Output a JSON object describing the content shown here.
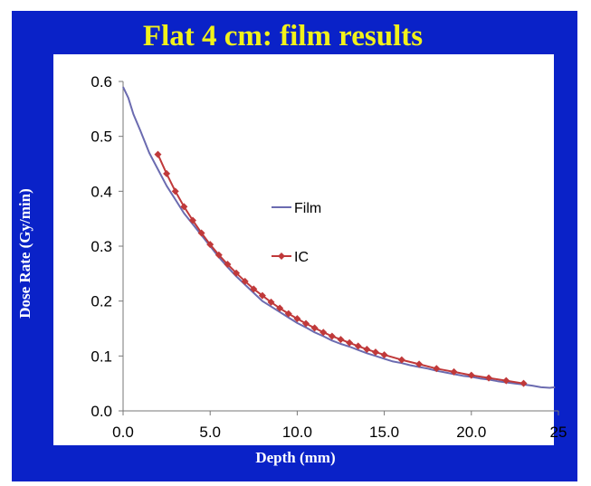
{
  "chart_data": {
    "type": "line",
    "title": "Flat 4 cm:  film results",
    "xlabel": "Depth (mm)",
    "ylabel": "Dose Rate (Gy/min)",
    "xlim": [
      0,
      25
    ],
    "ylim": [
      0,
      0.6
    ],
    "x_ticks": [
      "0.0",
      "5.0",
      "10.0",
      "15.0",
      "20.0",
      "25"
    ],
    "y_ticks": [
      "0.0",
      "0.1",
      "0.2",
      "0.3",
      "0.4",
      "0.5",
      "0.6"
    ],
    "grid": false,
    "legend_position": "center",
    "series": [
      {
        "name": "Film",
        "color": "#6b6bb0",
        "marker": "none",
        "x": [
          0,
          0.3,
          0.6,
          1.0,
          1.5,
          2.0,
          2.5,
          3.0,
          3.5,
          4.0,
          4.5,
          5.0,
          5.5,
          6.0,
          6.5,
          7.0,
          7.5,
          8.0,
          8.5,
          9.0,
          9.5,
          10.0,
          10.5,
          11.0,
          11.5,
          12.0,
          12.5,
          13.0,
          13.5,
          14.0,
          14.5,
          15.0,
          15.5,
          16.0,
          16.5,
          17.0,
          17.5,
          18.0,
          18.5,
          19.0,
          19.5,
          20.0,
          20.5,
          21.0,
          21.5,
          22.0,
          22.5,
          23.0,
          23.5,
          24.0,
          24.5,
          24.8
        ],
        "values": [
          0.59,
          0.57,
          0.54,
          0.51,
          0.47,
          0.44,
          0.41,
          0.385,
          0.36,
          0.34,
          0.32,
          0.3,
          0.28,
          0.262,
          0.245,
          0.23,
          0.215,
          0.2,
          0.19,
          0.18,
          0.17,
          0.16,
          0.152,
          0.143,
          0.136,
          0.128,
          0.122,
          0.117,
          0.111,
          0.105,
          0.1,
          0.095,
          0.09,
          0.087,
          0.083,
          0.08,
          0.077,
          0.073,
          0.07,
          0.067,
          0.064,
          0.062,
          0.059,
          0.057,
          0.054,
          0.052,
          0.05,
          0.048,
          0.046,
          0.043,
          0.042,
          0.043
        ]
      },
      {
        "name": "IC",
        "color": "#c0393a",
        "marker": "diamond",
        "x": [
          2,
          2.5,
          3,
          3.5,
          4,
          4.5,
          5,
          5.5,
          6,
          6.5,
          7,
          7.5,
          8,
          8.5,
          9,
          9.5,
          10,
          10.5,
          11,
          11.5,
          12,
          12.5,
          13,
          13.5,
          14,
          14.5,
          15,
          16,
          17,
          18,
          19,
          20,
          21,
          22,
          23
        ],
        "values": [
          0.467,
          0.432,
          0.4,
          0.372,
          0.347,
          0.324,
          0.303,
          0.284,
          0.267,
          0.251,
          0.236,
          0.222,
          0.21,
          0.198,
          0.187,
          0.177,
          0.168,
          0.159,
          0.151,
          0.143,
          0.136,
          0.13,
          0.124,
          0.118,
          0.112,
          0.107,
          0.102,
          0.093,
          0.085,
          0.077,
          0.071,
          0.065,
          0.06,
          0.055,
          0.05
        ]
      }
    ]
  }
}
